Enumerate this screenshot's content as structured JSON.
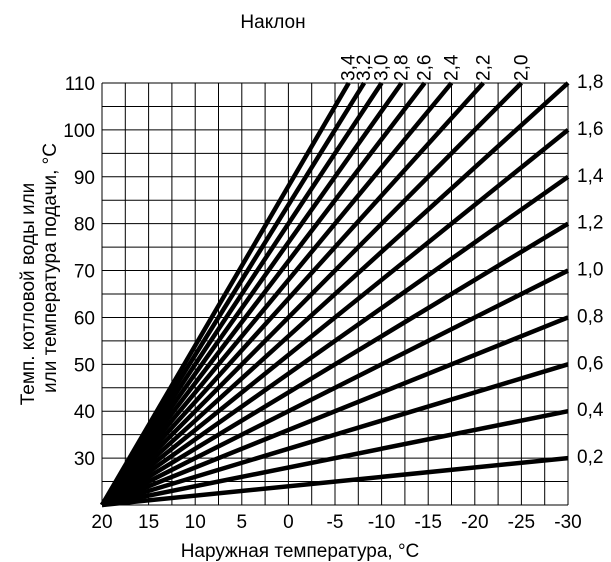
{
  "chart_data": {
    "type": "line",
    "title": "",
    "slope_title": "Наклон",
    "xlabel": "Наружная температура, °C",
    "ylabel_line1": "Темп. котловой воды или",
    "ylabel_line2": "или температура подачи, °C",
    "x_ticks": [
      "20",
      "15",
      "10",
      "5",
      "0",
      "-5",
      "-10",
      "-15",
      "-20",
      "-25",
      "-30"
    ],
    "y_ticks": [
      "30",
      "40",
      "50",
      "60",
      "70",
      "80",
      "90",
      "100",
      "110"
    ],
    "x_range": [
      20,
      -30
    ],
    "y_range": [
      20,
      110
    ],
    "grid": true,
    "origin": {
      "x": 20,
      "y": 20
    },
    "slopes": [
      0.2,
      0.4,
      0.6,
      0.8,
      1.0,
      1.2,
      1.4,
      1.6,
      1.8,
      2.0,
      2.2,
      2.4,
      2.6,
      2.8,
      3.0,
      3.2,
      3.4
    ],
    "top_labels": [
      "3,4",
      "3,2",
      "3,0",
      "2,8",
      "2,6",
      "2,4",
      "2,2",
      "2,0"
    ],
    "right_labels": [
      "1,8",
      "1,6",
      "1,4",
      "1,2",
      "1,0",
      "0,8",
      "0,6",
      "0,4",
      "0,2"
    ]
  }
}
